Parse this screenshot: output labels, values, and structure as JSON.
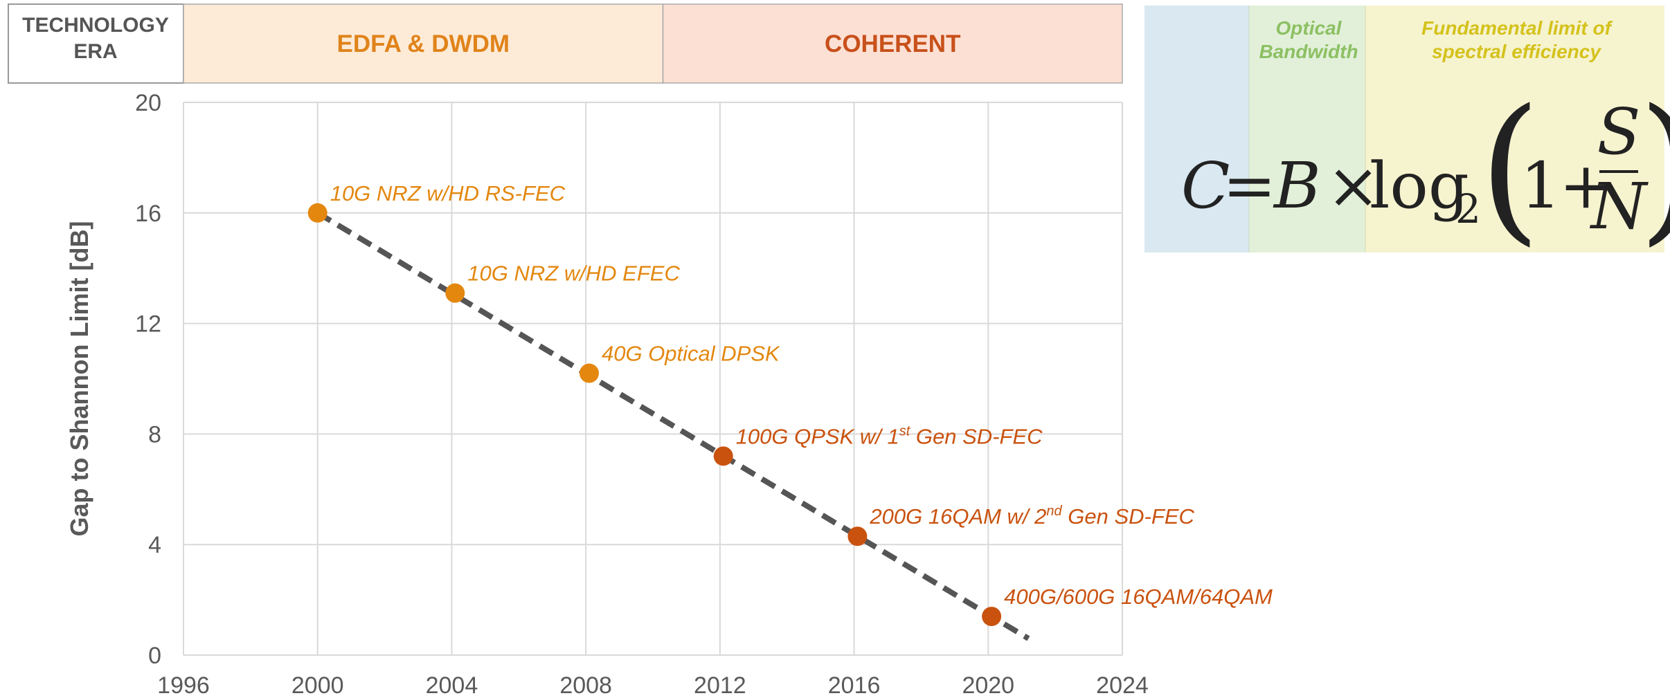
{
  "chart_data": {
    "type": "scatter",
    "header_label": "TECHNOLOGY ERA",
    "eras": [
      {
        "label": "EDFA & DWDM",
        "start": 1996,
        "end": 2010.3,
        "color": "#fdebd7",
        "text_color": "#e0831a"
      },
      {
        "label": "COHERENT",
        "start": 2010.3,
        "end": 2024,
        "color": "#fce0d4",
        "text_color": "#c8501a"
      }
    ],
    "y_label": "Gap to Shannon Limit [dB]",
    "x": [
      2000,
      2004.1,
      2008.1,
      2012.1,
      2016.1,
      2020.1
    ],
    "values": [
      16,
      13.1,
      10.2,
      7.2,
      4.3,
      1.4
    ],
    "colors": [
      "#e3870f",
      "#e3870f",
      "#e3870f",
      "#c9520f",
      "#c9520f",
      "#c9520f"
    ],
    "labels": [
      [
        "10G NRZ w/HD RS-FEC"
      ],
      [
        "10G NRZ w/HD EFEC"
      ],
      [
        "40G Optical DPSK"
      ],
      [
        "100G QPSK w/ 1",
        "st",
        " Gen SD-FEC"
      ],
      [
        "200G 16QAM w/ 2",
        "nd",
        " Gen SD-FEC"
      ],
      [
        "400G/600G 16QAM/64QAM"
      ]
    ],
    "trend": {
      "x": [
        2000,
        2021.2
      ],
      "y": [
        16,
        0.6
      ],
      "color": "#555555"
    },
    "xlim": [
      1996,
      2024
    ],
    "xticks": [
      1996,
      2000,
      2004,
      2008,
      2012,
      2016,
      2020,
      2024
    ],
    "ylim": [
      0,
      20
    ],
    "yticks": [
      0,
      4,
      8,
      12,
      16,
      20
    ],
    "grid": true,
    "formula": {
      "bandwidth_label": "Optical Bandwidth",
      "limit_label": "Fundamental limit of spectral efficiency",
      "tokens": [
        "C",
        "=",
        "B",
        "×",
        "log",
        "2",
        "(",
        "1",
        "+",
        "S",
        "N",
        ")"
      ]
    }
  }
}
